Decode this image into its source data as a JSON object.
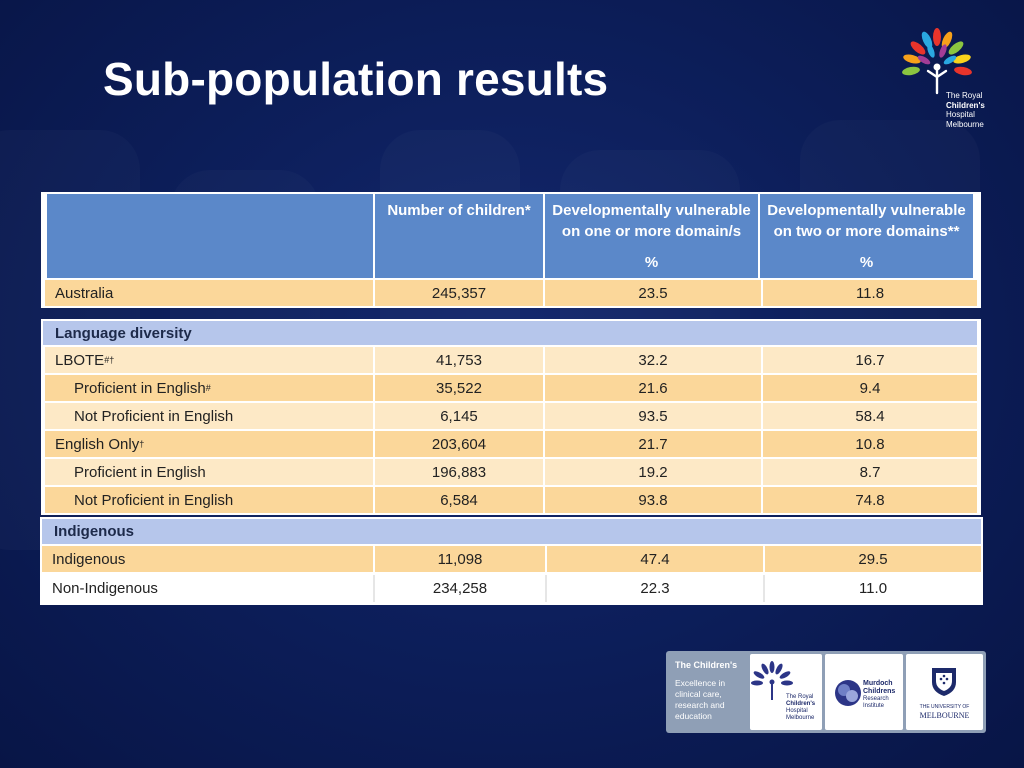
{
  "slide": {
    "title": "Sub-population results"
  },
  "logo": {
    "lines": [
      "The Royal",
      "Children's",
      "Hospital",
      "Melbourne"
    ]
  },
  "table": {
    "headers": {
      "label": "",
      "number": "Number of children*",
      "one_or_more_line1": "Developmentally vulnerable",
      "one_or_more_line2": "on one or more domain/s",
      "one_or_more_unit": "%",
      "two_or_more_line1": "Developmentally vulnerable",
      "two_or_more_line2": "on two or more domains**",
      "two_or_more_unit": "%"
    },
    "australia": {
      "label": "Australia",
      "number": "245,357",
      "one": "23.5",
      "two": "11.8"
    },
    "language": {
      "title": "Language diversity",
      "rows": [
        {
          "label": "LBOTE",
          "mark": "#†",
          "number": "41,753",
          "one": "32.2",
          "two": "16.7"
        },
        {
          "label": "Proficient in English",
          "mark": "#",
          "number": "35,522",
          "one": "21.6",
          "two": "9.4"
        },
        {
          "label": "Not Proficient in English",
          "mark": "",
          "number": "6,145",
          "one": "93.5",
          "two": "58.4"
        },
        {
          "label": "English Only",
          "mark": "†",
          "number": "203,604",
          "one": "21.7",
          "two": "10.8"
        },
        {
          "label": "Proficient in English",
          "mark": "",
          "number": "196,883",
          "one": "19.2",
          "two": "8.7"
        },
        {
          "label": "Not Proficient in English",
          "mark": "",
          "number": "6,584",
          "one": "93.8",
          "two": "74.8"
        }
      ]
    },
    "indigenous": {
      "title": "Indigenous",
      "rows": [
        {
          "label": "Indigenous",
          "number": "11,098",
          "one": "47.4",
          "two": "29.5"
        },
        {
          "label": "Non-Indigenous",
          "number": "234,258",
          "one": "22.3",
          "two": "11.0"
        }
      ]
    }
  },
  "footer": {
    "heading": "The Children's",
    "tagline": "Excellence in clinical care, research and education",
    "rch_caption": [
      "The Royal",
      "Children's",
      "Hospital",
      "Melbourne"
    ],
    "mcri_caption": [
      "Murdoch",
      "Childrens",
      "Research",
      "Institute"
    ],
    "uom_caption": [
      "THE UNIVERSITY OF",
      "MELBOURNE"
    ]
  }
}
